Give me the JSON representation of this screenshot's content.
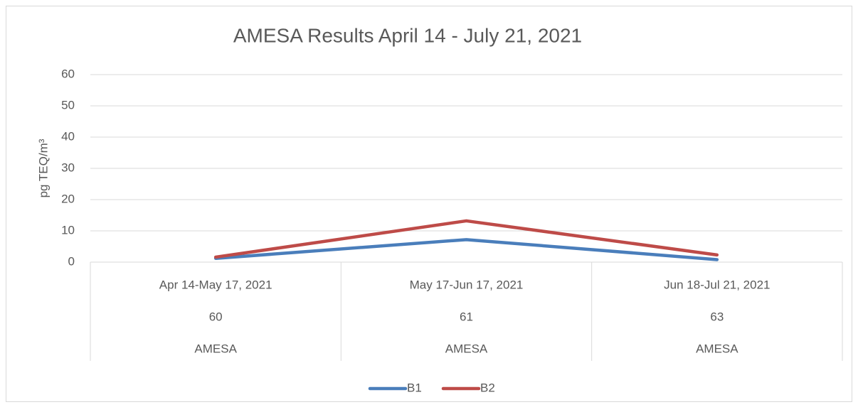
{
  "chart_data": {
    "type": "line",
    "title": "AMESA Results April 14 - July 21, 2021",
    "ylabel": "pg TEQ/m³",
    "categories": [
      "Apr 14-May 17, 2021",
      "May 17-Jun 17, 2021",
      "Jun 18-Jul 21, 2021"
    ],
    "category_ids": [
      "60",
      "61",
      "63"
    ],
    "category_groups": [
      "AMESA",
      "AMESA",
      "AMESA"
    ],
    "series": [
      {
        "name": "B1",
        "color": "#4a7ebb",
        "values": [
          1.2,
          7.2,
          0.8
        ]
      },
      {
        "name": "B2",
        "color": "#be4b48",
        "values": [
          1.6,
          13.2,
          2.3
        ]
      }
    ],
    "ylim": [
      0,
      60
    ],
    "yticks": [
      0,
      10,
      20,
      30,
      40,
      50,
      60
    ],
    "grid": true,
    "legend": "bottom"
  }
}
